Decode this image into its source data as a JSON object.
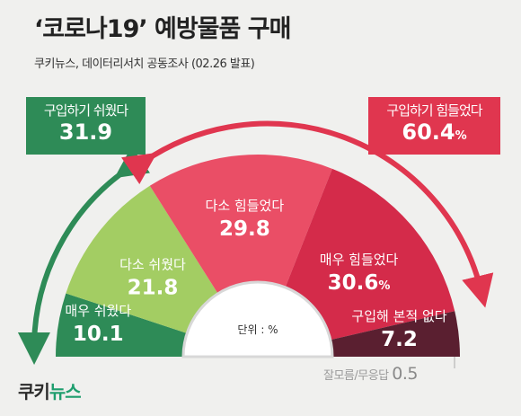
{
  "title": "‘코로나19’ 예방물품 구매",
  "subtitle": "쿠키뉴스, 데이터리서치 공동조사 (02.26 발표)",
  "unit_label": "단위 : %",
  "logo": {
    "part1": "쿠키",
    "part2": "뉴스"
  },
  "summary": {
    "easy": {
      "label": "구입하기 쉬웠다",
      "value": "31.9"
    },
    "hard": {
      "label": "구입하기 힘들었다",
      "value": "60.4",
      "unit": "%"
    }
  },
  "no_answer": {
    "label": "잘모름/무응답",
    "value": "0.5"
  },
  "colors": {
    "easy_box": "#2e8b57",
    "hard_box": "#e0364f",
    "arrow_left": "#2e8b57",
    "arrow_right": "#e0364f"
  },
  "chart_data": {
    "type": "pie",
    "variant": "semicircle",
    "unit": "%",
    "slices": [
      {
        "label": "매우 쉬웠다",
        "value": 10.1,
        "color": "#2e8b57"
      },
      {
        "label": "다소 쉬웠다",
        "value": 21.8,
        "color": "#a3cd63"
      },
      {
        "label": "다소 힘들었다",
        "value": 29.8,
        "color": "#ea4e66"
      },
      {
        "label": "매우 힘들었다",
        "value": 30.6,
        "color": "#d42b4a",
        "unit": "%"
      },
      {
        "label": "구입해 본적 없다",
        "value": 7.2,
        "color": "#5a1f30"
      }
    ]
  }
}
